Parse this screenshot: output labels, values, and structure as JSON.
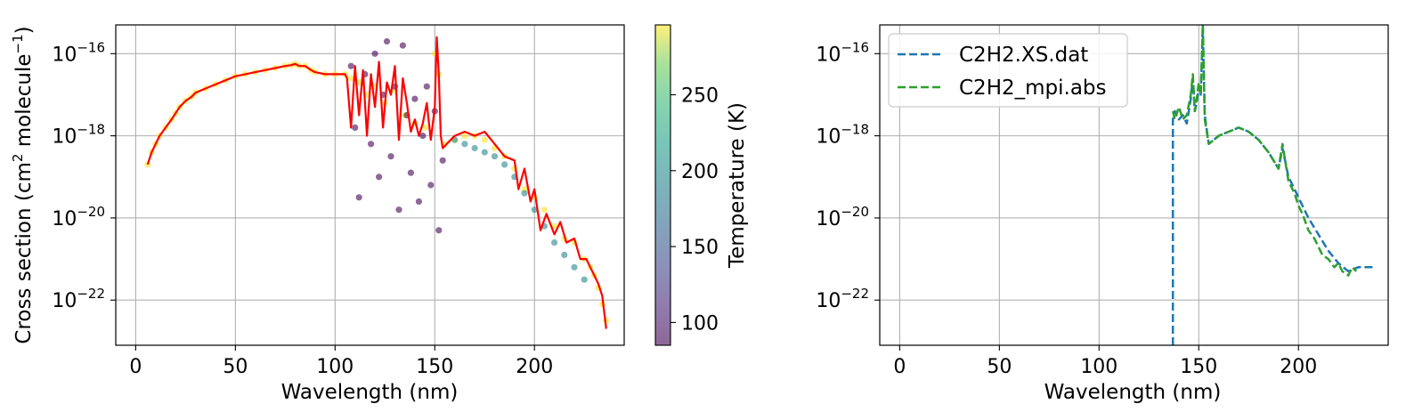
{
  "chart_data": [
    {
      "type": "scatter",
      "title": "",
      "xlabel": "Wavelength (nm)",
      "ylabel": "Cross section (cm² molecule⁻¹)",
      "ylabel_parts": {
        "a": "Cross section (cm",
        "sup1": "2",
        "b": " molecule",
        "sup2": "−1",
        "c": ")"
      },
      "xlim": [
        -10,
        245
      ],
      "ylim_log10": [
        -23.1,
        -15.3
      ],
      "y_scale": "log",
      "grid": true,
      "x_ticks": [
        0,
        50,
        100,
        150,
        200
      ],
      "y_ticks_log10": [
        -16,
        -18,
        -20,
        -22
      ],
      "y_tick_labels": [
        {
          "base": "10",
          "exp": "−16"
        },
        {
          "base": "10",
          "exp": "−18"
        },
        {
          "base": "10",
          "exp": "−20"
        },
        {
          "base": "10",
          "exp": "−22"
        }
      ],
      "colorbar": {
        "label": "Temperature (K)",
        "range": [
          85,
          296
        ],
        "ticks": [
          100,
          150,
          200,
          250
        ],
        "colormap": "viridis",
        "alpha": 0.6
      },
      "series": [
        {
          "temperature": 295,
          "marker": "dot",
          "x": [
            6,
            8,
            10,
            12,
            15,
            18,
            20,
            22,
            25,
            28,
            30,
            35,
            40,
            45,
            50,
            55,
            60,
            65,
            70,
            75,
            78,
            80,
            82,
            85,
            88,
            90,
            95,
            100,
            105,
            108,
            112,
            116,
            120,
            125,
            130,
            135,
            140,
            145,
            150,
            152,
            155,
            160,
            165,
            170,
            175,
            180,
            185,
            190,
            195,
            200,
            205,
            210,
            215,
            220,
            225,
            228,
            230,
            232,
            234,
            236
          ],
          "log10_y": [
            -18.7,
            -18.4,
            -18.2,
            -18.0,
            -17.8,
            -17.6,
            -17.45,
            -17.3,
            -17.15,
            -17.05,
            -16.95,
            -16.85,
            -16.75,
            -16.65,
            -16.55,
            -16.5,
            -16.45,
            -16.4,
            -16.35,
            -16.3,
            -16.28,
            -16.25,
            -16.3,
            -16.3,
            -16.4,
            -16.45,
            -16.5,
            -16.5,
            -16.5,
            -16.6,
            -16.7,
            -17.0,
            -16.8,
            -17.2,
            -16.9,
            -17.5,
            -17.7,
            -17.8,
            -16.0,
            -16.5,
            -18.2,
            -18.1,
            -18.0,
            -18.0,
            -18.1,
            -18.3,
            -18.5,
            -18.8,
            -19.3,
            -19.5,
            -19.8,
            -20.2,
            -20.5,
            -20.6,
            -21.0,
            -21.2,
            -21.4,
            -21.7,
            -22.1,
            -22.5
          ]
        },
        {
          "temperature": 195,
          "marker": "dot",
          "x": [
            160,
            165,
            170,
            175,
            180,
            185,
            190,
            195,
            200,
            205,
            210,
            215,
            220,
            225
          ],
          "log10_y": [
            -18.1,
            -18.2,
            -18.3,
            -18.4,
            -18.5,
            -18.7,
            -19.0,
            -19.4,
            -19.8,
            -20.2,
            -20.6,
            -20.9,
            -21.2,
            -21.5
          ]
        },
        {
          "temperature": 85,
          "marker": "dot",
          "x": [
            108,
            110,
            112,
            115,
            118,
            120,
            122,
            124,
            126,
            128,
            130,
            132,
            134,
            136,
            138,
            140,
            142,
            144,
            146,
            148,
            150,
            152,
            154
          ],
          "log10_y": [
            -16.3,
            -17.8,
            -19.5,
            -16.5,
            -18.2,
            -16.0,
            -19.0,
            -17.0,
            -15.7,
            -18.5,
            -16.8,
            -19.8,
            -15.8,
            -17.5,
            -18.9,
            -17.1,
            -19.6,
            -18.0,
            -16.8,
            -19.2,
            -17.4,
            -20.3,
            -18.6
          ]
        }
      ],
      "line": {
        "name": "",
        "color": "#ff0000",
        "x": [
          6,
          8,
          10,
          12,
          15,
          18,
          20,
          22,
          25,
          28,
          30,
          35,
          40,
          45,
          50,
          55,
          60,
          65,
          70,
          75,
          78,
          80,
          82,
          85,
          88,
          90,
          95,
          100,
          105,
          106,
          108,
          110,
          112,
          114,
          116,
          118,
          120,
          122,
          124,
          126,
          128,
          130,
          132,
          134,
          136,
          138,
          140,
          142,
          144,
          146,
          148,
          150,
          151,
          152,
          153,
          154,
          156,
          158,
          160,
          165,
          170,
          175,
          180,
          185,
          190,
          192,
          195,
          198,
          200,
          203,
          206,
          210,
          213,
          216,
          220,
          223,
          226,
          228,
          230,
          232,
          234,
          235,
          236
        ],
        "log10_y": [
          -18.7,
          -18.4,
          -18.2,
          -18.0,
          -17.8,
          -17.6,
          -17.45,
          -17.3,
          -17.15,
          -17.05,
          -16.95,
          -16.85,
          -16.75,
          -16.65,
          -16.55,
          -16.5,
          -16.45,
          -16.4,
          -16.35,
          -16.3,
          -16.28,
          -16.25,
          -16.3,
          -16.3,
          -16.4,
          -16.45,
          -16.5,
          -16.5,
          -16.5,
          -16.6,
          -17.8,
          -16.3,
          -17.5,
          -16.4,
          -18.0,
          -16.5,
          -17.3,
          -16.2,
          -17.8,
          -16.7,
          -17.0,
          -16.3,
          -18.1,
          -16.6,
          -17.2,
          -17.9,
          -17.6,
          -18.0,
          -17.7,
          -17.2,
          -18.1,
          -17.3,
          -15.6,
          -16.5,
          -18.0,
          -18.3,
          -18.2,
          -18.1,
          -18.0,
          -17.9,
          -18.0,
          -17.9,
          -18.2,
          -18.5,
          -18.6,
          -19.3,
          -18.8,
          -19.6,
          -19.3,
          -20.3,
          -19.9,
          -20.4,
          -20.1,
          -20.6,
          -20.5,
          -21.0,
          -21.0,
          -21.2,
          -21.4,
          -21.6,
          -21.9,
          -22.3,
          -22.7
        ]
      }
    },
    {
      "type": "line",
      "title": "",
      "xlabel": "Wavelength (nm)",
      "ylabel": "",
      "xlim": [
        -10,
        245
      ],
      "ylim_log10": [
        -23.1,
        -15.3
      ],
      "y_scale": "log",
      "grid": true,
      "x_ticks": [
        0,
        50,
        100,
        150,
        200
      ],
      "y_ticks_log10": [
        -16,
        -18,
        -20,
        -22
      ],
      "y_tick_labels": [
        {
          "base": "10",
          "exp": "−16"
        },
        {
          "base": "10",
          "exp": "−18"
        },
        {
          "base": "10",
          "exp": "−20"
        },
        {
          "base": "10",
          "exp": "−22"
        }
      ],
      "legend_position": "upper-left",
      "series": [
        {
          "name": "C2H2.XS.dat",
          "color": "#1f77b4",
          "dash": "dashed",
          "x": [
            137,
            137,
            138,
            140,
            142,
            144,
            146,
            147,
            148,
            149,
            150,
            151,
            152,
            153,
            155,
            160,
            165,
            170,
            175,
            180,
            185,
            190,
            192,
            195,
            198,
            200,
            205,
            210,
            215,
            220,
            225,
            230,
            235,
            238
          ],
          "log10_y": [
            -23.1,
            -17.6,
            -17.4,
            -17.6,
            -17.5,
            -17.7,
            -17.1,
            -16.6,
            -17.4,
            -17.2,
            -16.8,
            -17.0,
            -15.3,
            -17.5,
            -18.2,
            -18.0,
            -17.9,
            -17.8,
            -17.9,
            -18.1,
            -18.4,
            -18.8,
            -18.3,
            -19.0,
            -19.3,
            -19.5,
            -20.0,
            -20.4,
            -20.8,
            -21.1,
            -21.3,
            -21.2,
            -21.2,
            -21.2
          ]
        },
        {
          "name": "C2H2_mpi.abs",
          "color": "#2ca02c",
          "dash": "dashed",
          "x": [
            137,
            138,
            140,
            142,
            144,
            146,
            147,
            148,
            149,
            150,
            151,
            152,
            153,
            155,
            160,
            165,
            170,
            175,
            180,
            185,
            190,
            192,
            195,
            198,
            200,
            202,
            205,
            208,
            210,
            212,
            215,
            218,
            220,
            222,
            225,
            227,
            229
          ],
          "log10_y": [
            -17.4,
            -17.6,
            -17.3,
            -17.6,
            -17.5,
            -17.0,
            -16.5,
            -17.4,
            -17.1,
            -16.7,
            -17.0,
            -15.3,
            -17.6,
            -18.2,
            -18.0,
            -17.9,
            -17.8,
            -17.9,
            -18.1,
            -18.4,
            -18.8,
            -18.2,
            -19.1,
            -19.4,
            -19.7,
            -19.9,
            -20.3,
            -20.5,
            -20.7,
            -20.9,
            -21.0,
            -21.2,
            -21.1,
            -21.3,
            -21.4,
            -21.2,
            -21.3
          ]
        }
      ]
    }
  ]
}
